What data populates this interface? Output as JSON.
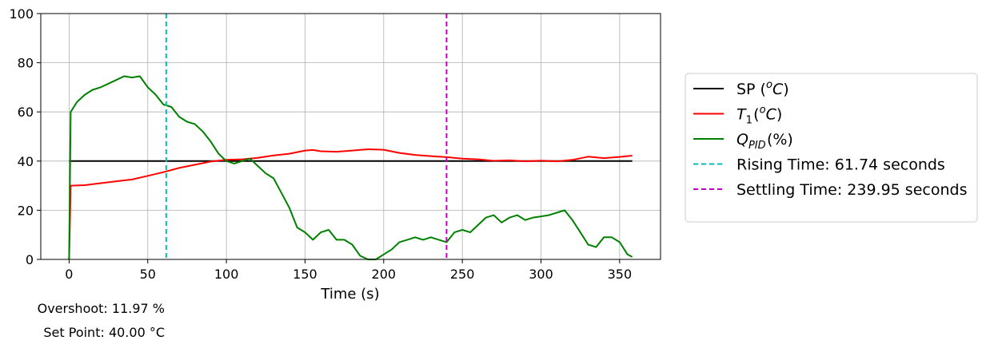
{
  "chart_data": {
    "type": "line",
    "xlabel": "Time (s)",
    "ylabel": "",
    "xlim": [
      -18,
      376
    ],
    "ylim": [
      0,
      100
    ],
    "x_ticks": [
      0,
      50,
      100,
      150,
      200,
      250,
      300,
      350
    ],
    "y_ticks": [
      0,
      20,
      40,
      60,
      80,
      100
    ],
    "grid": true,
    "legend_position": "right",
    "series": [
      {
        "name": "SP (°C)",
        "legend": {
          "base": "SP (",
          "italic": "o",
          "italic_sup": true,
          "tail_italic": "C",
          "end": ")"
        },
        "color": "#000000",
        "points": [
          [
            0,
            40
          ],
          [
            358,
            40
          ]
        ]
      },
      {
        "name": "T1 (°C)",
        "legend": {
          "prefix": "T",
          "sub": "1",
          "base": " (",
          "italic": "o",
          "italic_sup": true,
          "tail_italic": "C",
          "end": ")"
        },
        "color": "#ff0000",
        "points": [
          [
            0,
            0
          ],
          [
            1,
            30
          ],
          [
            10,
            30.2
          ],
          [
            20,
            31
          ],
          [
            30,
            31.8
          ],
          [
            40,
            32.5
          ],
          [
            50,
            34
          ],
          [
            60,
            35.5
          ],
          [
            70,
            37.2
          ],
          [
            80,
            38.5
          ],
          [
            90,
            39.8
          ],
          [
            100,
            40.5
          ],
          [
            110,
            40.7
          ],
          [
            120,
            41.3
          ],
          [
            130,
            42.3
          ],
          [
            140,
            43
          ],
          [
            150,
            44.3
          ],
          [
            155,
            44.5
          ],
          [
            160,
            44
          ],
          [
            170,
            43.8
          ],
          [
            180,
            44.3
          ],
          [
            190,
            44.8
          ],
          [
            200,
            44.6
          ],
          [
            210,
            43.3
          ],
          [
            220,
            42.5
          ],
          [
            230,
            42
          ],
          [
            240,
            41.6
          ],
          [
            250,
            41
          ],
          [
            260,
            40.7
          ],
          [
            270,
            40.1
          ],
          [
            280,
            40.3
          ],
          [
            290,
            39.9
          ],
          [
            300,
            40.2
          ],
          [
            310,
            39.9
          ],
          [
            320,
            40.5
          ],
          [
            330,
            41.8
          ],
          [
            340,
            41.2
          ],
          [
            350,
            41.7
          ],
          [
            358,
            42.2
          ]
        ]
      },
      {
        "name": "QPID (%)",
        "legend": {
          "prefix": "Q",
          "sub": "PID",
          "base": " (%)"
        },
        "color": "#008000",
        "points": [
          [
            0,
            0
          ],
          [
            1,
            60
          ],
          [
            5,
            64
          ],
          [
            10,
            67
          ],
          [
            15,
            69
          ],
          [
            20,
            70
          ],
          [
            25,
            71.5
          ],
          [
            30,
            73
          ],
          [
            35,
            74.5
          ],
          [
            40,
            74
          ],
          [
            45,
            74.5
          ],
          [
            50,
            70
          ],
          [
            55,
            67
          ],
          [
            60,
            63
          ],
          [
            65,
            62
          ],
          [
            70,
            58
          ],
          [
            75,
            56
          ],
          [
            80,
            55
          ],
          [
            85,
            52
          ],
          [
            90,
            48
          ],
          [
            95,
            43
          ],
          [
            100,
            40
          ],
          [
            105,
            39
          ],
          [
            110,
            40
          ],
          [
            115,
            41
          ],
          [
            120,
            38
          ],
          [
            125,
            35
          ],
          [
            130,
            33
          ],
          [
            135,
            27
          ],
          [
            140,
            21
          ],
          [
            145,
            13
          ],
          [
            150,
            11
          ],
          [
            155,
            8
          ],
          [
            160,
            11
          ],
          [
            165,
            12
          ],
          [
            170,
            8
          ],
          [
            175,
            8
          ],
          [
            180,
            6
          ],
          [
            185,
            1.5
          ],
          [
            190,
            0
          ],
          [
            195,
            0
          ],
          [
            200,
            2
          ],
          [
            205,
            4
          ],
          [
            210,
            7
          ],
          [
            215,
            8
          ],
          [
            220,
            9
          ],
          [
            225,
            8
          ],
          [
            230,
            9
          ],
          [
            235,
            8
          ],
          [
            240,
            7
          ],
          [
            245,
            11
          ],
          [
            250,
            12
          ],
          [
            255,
            11
          ],
          [
            260,
            14
          ],
          [
            265,
            17
          ],
          [
            270,
            18
          ],
          [
            275,
            15
          ],
          [
            280,
            17
          ],
          [
            285,
            18
          ],
          [
            290,
            16
          ],
          [
            295,
            17
          ],
          [
            300,
            17.5
          ],
          [
            305,
            18
          ],
          [
            310,
            19
          ],
          [
            315,
            20
          ],
          [
            320,
            16
          ],
          [
            325,
            11
          ],
          [
            330,
            6
          ],
          [
            335,
            5
          ],
          [
            340,
            9
          ],
          [
            345,
            9
          ],
          [
            350,
            7
          ],
          [
            355,
            2
          ],
          [
            358,
            1
          ]
        ]
      },
      {
        "name": "Rising Time: 61.74 seconds",
        "color": "#00bfbf",
        "dashed": true,
        "x": 61.74
      },
      {
        "name": "Settling Time: 239.95 seconds",
        "color": "#bf00bf",
        "dashed": true,
        "x": 239.95
      }
    ],
    "annotations": [
      {
        "text": "Overshoot: 11.97 %"
      },
      {
        "text": "Set Point: 40.00 °C"
      }
    ]
  }
}
